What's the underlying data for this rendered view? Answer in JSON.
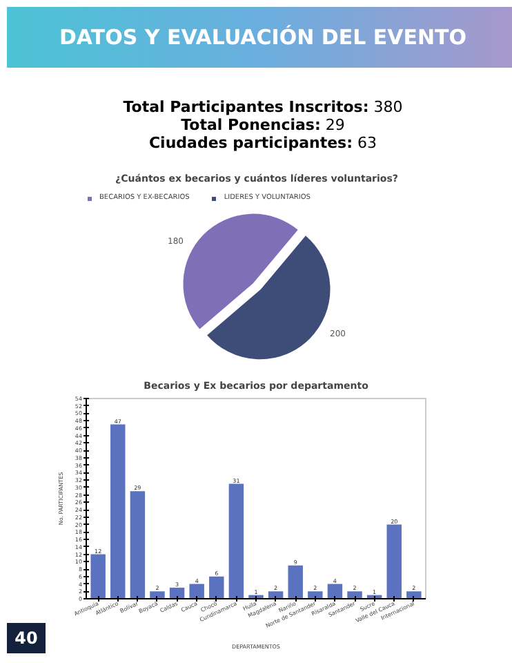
{
  "chart_data": [
    {
      "type": "pie",
      "title": "¿Cuántos ex becarios y cuántos líderes voluntarios?",
      "annotations": [
        "DATOS Y EVALUACIÓN DEL EVENTO",
        "Total Participantes Inscritos: 380",
        "Total Ponencias: 29",
        "Ciudades participantes: 63"
      ],
      "categories": [
        "BECARIOS Y EX-BECARIOS",
        "LIDERES Y VOLUNTARIOS"
      ],
      "values": [
        180,
        200
      ],
      "colors": [
        "#7f6fb6",
        "#3e4c78"
      ],
      "data_labels": true,
      "legend": "top left"
    },
    {
      "type": "bar",
      "title": "Becarios y Ex becarios por departamento",
      "xlabel": "DEPARTAMENTOS",
      "ylabel": "No. PARTICIPANTES",
      "annotations": [
        "40"
      ],
      "categories": [
        "Antioquia",
        "Atlántico",
        "Bolívar",
        "Boyacá",
        "Caldas",
        "Cauca",
        "Chocó",
        "Cundinamarca",
        "Huila",
        "Magdalena",
        "Nariño",
        "Norte de Santander",
        "Risaralda",
        "Santander",
        "Sucre",
        "Valle del Cauca",
        "Internacional"
      ],
      "values": [
        12,
        47,
        29,
        2,
        3,
        4,
        6,
        31,
        1,
        2,
        9,
        2,
        4,
        2,
        1,
        20,
        2
      ],
      "color": "#5a72c0",
      "ylim": [
        0,
        54
      ],
      "yticks": [
        0,
        2,
        4,
        6,
        8,
        10,
        12,
        14,
        16,
        18,
        20,
        22,
        24,
        26,
        28,
        30,
        32,
        34,
        36,
        38,
        40,
        42,
        44,
        46,
        48,
        50,
        52,
        54
      ],
      "data_labels": true,
      "grid": false
    }
  ]
}
